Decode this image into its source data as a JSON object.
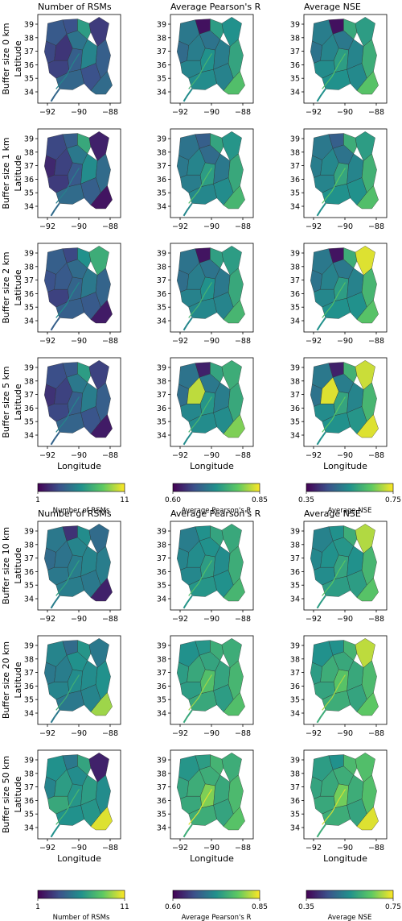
{
  "blocks": [
    {
      "column_titles": [
        "Number of RSMs",
        "Average Pearson's R",
        "Average NSE"
      ],
      "rows": [
        {
          "label": "Buffer size 0 km"
        },
        {
          "label": "Buffer size 1 km"
        },
        {
          "label": "Buffer size 2 km"
        },
        {
          "label": "Buffer size 5 km"
        }
      ],
      "colorbars": [
        {
          "label": "Number of RSMs",
          "min": "1",
          "max": "11"
        },
        {
          "label": "Average Pearson's R",
          "min": "0.60",
          "max": "0.85"
        },
        {
          "label": "Average NSE",
          "min": "0.35",
          "max": "0.75"
        }
      ]
    },
    {
      "column_titles": [
        "Number of RSMs",
        "Average Pearson's R",
        "Average NSE"
      ],
      "rows": [
        {
          "label": "Buffer size 10 km"
        },
        {
          "label": "Buffer size 20 km"
        },
        {
          "label": "Buffer size 50 km"
        }
      ],
      "colorbars": [
        {
          "label": "Number of RSMs",
          "min": "1",
          "max": "11"
        },
        {
          "label": "Average Pearson's R",
          "min": "0.60",
          "max": "0.85"
        },
        {
          "label": "Average NSE",
          "min": "0.35",
          "max": "0.75"
        }
      ]
    }
  ],
  "axes": {
    "ylabel": "Latitude",
    "xlabel": "Longitude",
    "xticks": [
      "−92",
      "−90",
      "−88"
    ],
    "yticks": [
      "39",
      "38",
      "37",
      "36",
      "35",
      "34"
    ]
  },
  "colormap": {
    "name": "viridis",
    "stops": [
      "#440154",
      "#3b528b",
      "#21918c",
      "#5ec962",
      "#fde725"
    ]
  },
  "panel_levels": [
    [
      [
        0.28,
        0.22,
        0.16,
        0.3,
        0.38,
        0.25,
        0.2,
        0.55,
        0.33,
        0.45,
        0.18,
        0.25,
        0.3,
        0.35
      ],
      [
        0.4,
        0.35,
        0.42,
        0.5,
        0.38,
        0.05,
        0.45,
        0.55,
        0.48,
        0.42,
        0.5,
        0.44,
        0.58,
        0.7
      ],
      [
        0.42,
        0.38,
        0.45,
        0.55,
        0.4,
        0.05,
        0.48,
        0.6,
        0.5,
        0.45,
        0.55,
        0.47,
        0.62,
        0.72
      ]
    ],
    [
      [
        0.22,
        0.12,
        0.2,
        0.28,
        0.4,
        0.3,
        0.18,
        0.6,
        0.35,
        0.48,
        0.1,
        0.3,
        0.35,
        0.06
      ],
      [
        0.38,
        0.4,
        0.45,
        0.55,
        0.35,
        0.3,
        0.42,
        0.58,
        0.46,
        0.4,
        0.52,
        0.48,
        0.6,
        0.66
      ],
      [
        0.4,
        0.42,
        0.46,
        0.58,
        0.38,
        0.3,
        0.45,
        0.62,
        0.5,
        0.45,
        0.55,
        0.5,
        0.64,
        0.7
      ]
    ],
    [
      [
        0.3,
        0.25,
        0.28,
        0.32,
        0.35,
        0.22,
        0.2,
        0.5,
        0.3,
        0.4,
        0.62,
        0.28,
        0.32,
        0.08
      ],
      [
        0.38,
        0.36,
        0.42,
        0.5,
        0.38,
        0.06,
        0.44,
        0.56,
        0.46,
        0.4,
        0.55,
        0.45,
        0.6,
        0.66
      ],
      [
        0.4,
        0.38,
        0.44,
        0.55,
        0.4,
        0.06,
        0.46,
        0.62,
        0.5,
        0.44,
        0.95,
        0.5,
        0.66,
        0.72
      ]
    ],
    [
      [
        0.24,
        0.15,
        0.2,
        0.3,
        0.4,
        0.28,
        0.22,
        0.55,
        0.32,
        0.42,
        0.2,
        0.26,
        0.3,
        0.08
      ],
      [
        0.38,
        0.36,
        0.9,
        0.52,
        0.4,
        0.1,
        0.46,
        0.58,
        0.48,
        0.42,
        0.62,
        0.48,
        0.6,
        0.8
      ],
      [
        0.4,
        0.38,
        0.95,
        0.58,
        0.42,
        0.1,
        0.48,
        0.64,
        0.5,
        0.45,
        0.92,
        0.52,
        0.66,
        0.95
      ]
    ],
    [
      [
        0.4,
        0.35,
        0.38,
        0.42,
        0.45,
        0.15,
        0.4,
        0.48,
        0.42,
        0.45,
        0.35,
        0.4,
        0.42,
        0.1
      ],
      [
        0.42,
        0.45,
        0.48,
        0.55,
        0.5,
        0.5,
        0.46,
        0.58,
        0.52,
        0.48,
        0.6,
        0.5,
        0.62,
        0.66
      ],
      [
        0.44,
        0.46,
        0.5,
        0.58,
        0.52,
        0.5,
        0.48,
        0.62,
        0.55,
        0.5,
        0.88,
        0.55,
        0.66,
        0.72
      ]
    ],
    [
      [
        0.45,
        0.4,
        0.42,
        0.48,
        0.5,
        0.35,
        0.45,
        0.52,
        0.4,
        0.48,
        0.4,
        0.45,
        0.5,
        0.85
      ],
      [
        0.5,
        0.55,
        0.6,
        0.7,
        0.58,
        0.52,
        0.55,
        0.62,
        0.6,
        0.58,
        0.62,
        0.55,
        0.66,
        0.7
      ],
      [
        0.5,
        0.55,
        0.62,
        0.72,
        0.6,
        0.5,
        0.58,
        0.65,
        0.62,
        0.6,
        0.9,
        0.58,
        0.68,
        0.74
      ]
    ],
    [
      [
        0.5,
        0.45,
        0.55,
        0.52,
        0.48,
        0.4,
        0.6,
        0.58,
        0.5,
        0.55,
        0.1,
        0.52,
        0.48,
        0.95
      ],
      [
        0.52,
        0.58,
        0.62,
        0.8,
        0.62,
        0.55,
        0.6,
        0.65,
        0.62,
        0.6,
        0.62,
        0.58,
        0.68,
        0.72
      ],
      [
        0.55,
        0.58,
        0.6,
        0.78,
        0.62,
        0.5,
        0.6,
        0.68,
        0.62,
        0.62,
        0.7,
        0.58,
        0.7,
        0.95
      ]
    ]
  ]
}
